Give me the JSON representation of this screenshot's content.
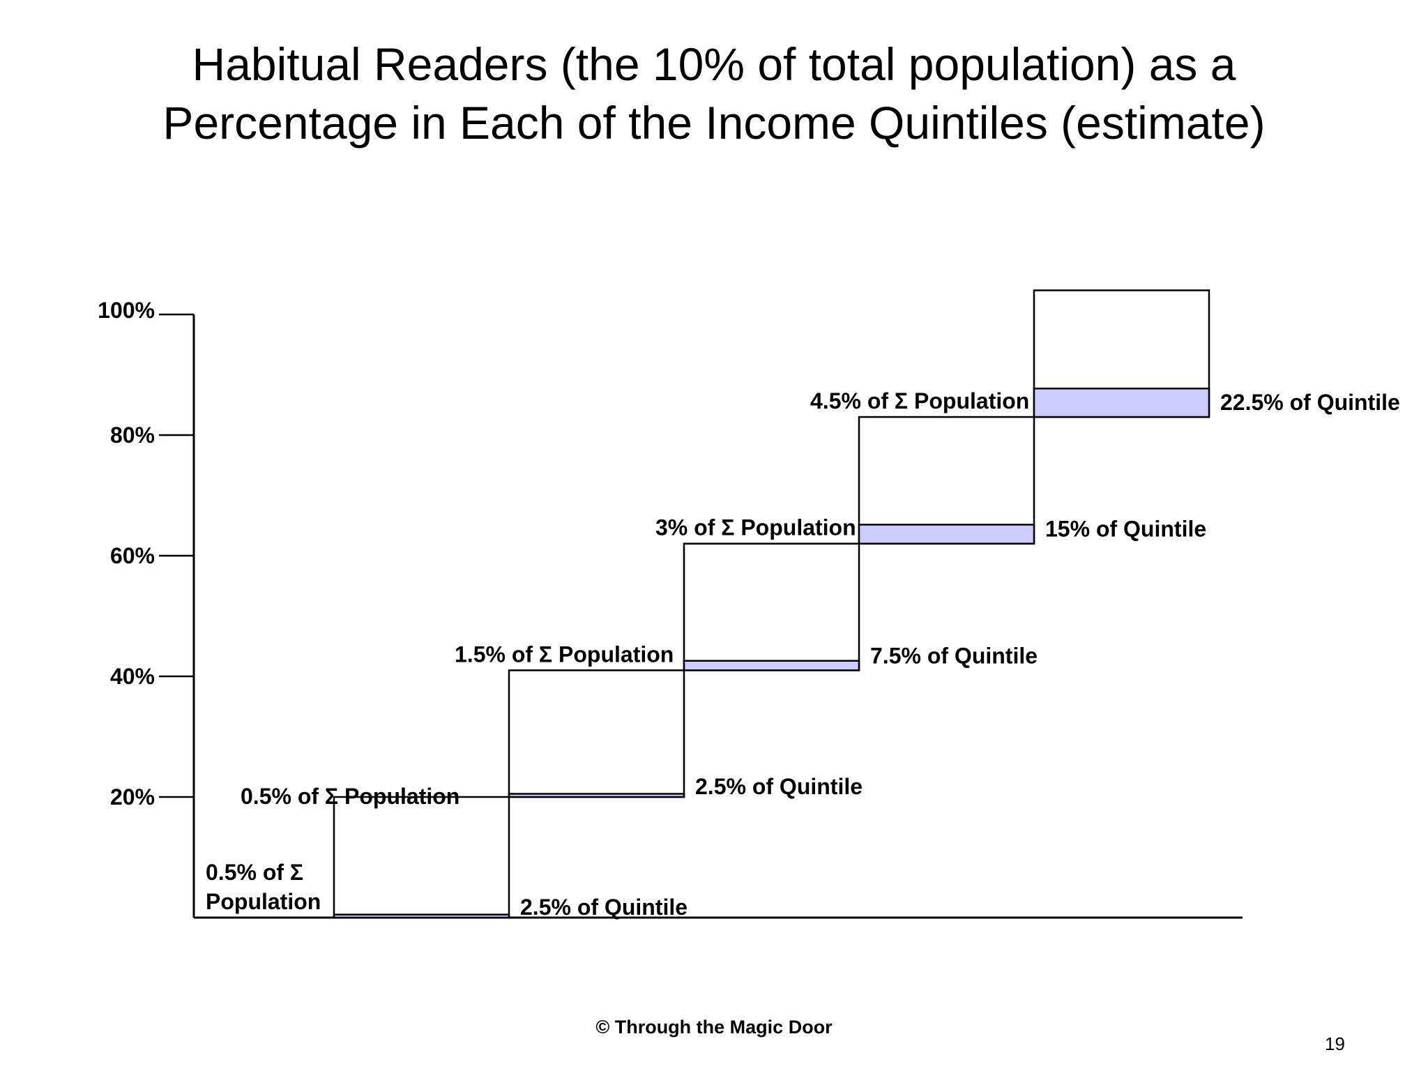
{
  "title": {
    "line1": "Habitual Readers (the 10% of total population) as a",
    "line2": "Percentage in Each of the Income Quintiles (estimate)"
  },
  "chart_data": {
    "type": "bar",
    "title": "Habitual Readers (the 10% of total population) as a Percentage in Each of the Income Quintiles (estimate)",
    "xlabel": "",
    "ylabel": "",
    "ylim": [
      0,
      100
    ],
    "yticks": [
      20,
      40,
      60,
      80,
      100
    ],
    "ytick_labels": [
      "20%",
      "40%",
      "60%",
      "80%",
      "100%"
    ],
    "grid": false,
    "colors": {
      "reader_fill": "#ccccff",
      "outline": "#000000"
    },
    "quintiles": [
      {
        "base": 0,
        "top": 20,
        "reader_pct_of_quintile": 2.5,
        "population_label": "0.5% of Σ Population",
        "quintile_label": "2.5% of Quintile"
      },
      {
        "base": 20,
        "top": 41,
        "reader_pct_of_quintile": 2.5,
        "population_label": "0.5% of Σ Population",
        "quintile_label": "2.5% of Quintile"
      },
      {
        "base": 41,
        "top": 62,
        "reader_pct_of_quintile": 7.5,
        "population_label": "1.5% of Σ Population",
        "quintile_label": "7.5% of Quintile"
      },
      {
        "base": 62,
        "top": 83,
        "reader_pct_of_quintile": 15,
        "population_label": "3% of Σ Population",
        "quintile_label": "15% of Quintile"
      },
      {
        "base": 83,
        "top": 104,
        "reader_pct_of_quintile": 22.5,
        "population_label": "4.5% of Σ Population",
        "quintile_label": "22.5% of Quintile"
      }
    ]
  },
  "footer": "© Through the Magic Door",
  "page_number": "19"
}
